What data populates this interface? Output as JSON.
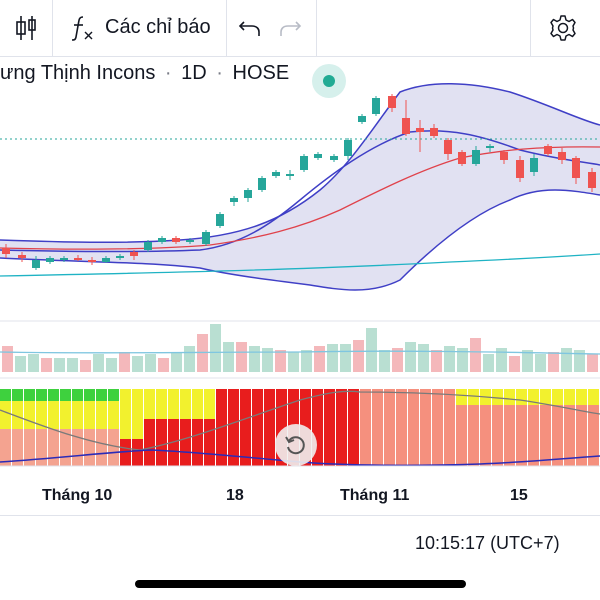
{
  "toolbar": {
    "indicators_label": "Các chỉ báo"
  },
  "symbol": {
    "name": "ưng Thịnh Incons",
    "sep1": "·",
    "interval": "1D",
    "sep2": "·",
    "exchange": "HOSE"
  },
  "time_axis": {
    "labels": [
      "Tháng 10",
      "18",
      "Tháng 11",
      "15"
    ]
  },
  "clock": "10:15:17 (UTC+7)",
  "colors": {
    "up": "#26a69a",
    "down": "#ef5350",
    "band_line": "#3f3fc6",
    "band_fill": "#d8d8ef",
    "ma_red": "#e0424b",
    "ma_cyan": "#1fb3c4",
    "accent": "#22ab94"
  },
  "icons": [
    "candles-icon",
    "function-icon",
    "undo-icon",
    "redo-icon",
    "gear-icon",
    "replay-icon"
  ]
}
